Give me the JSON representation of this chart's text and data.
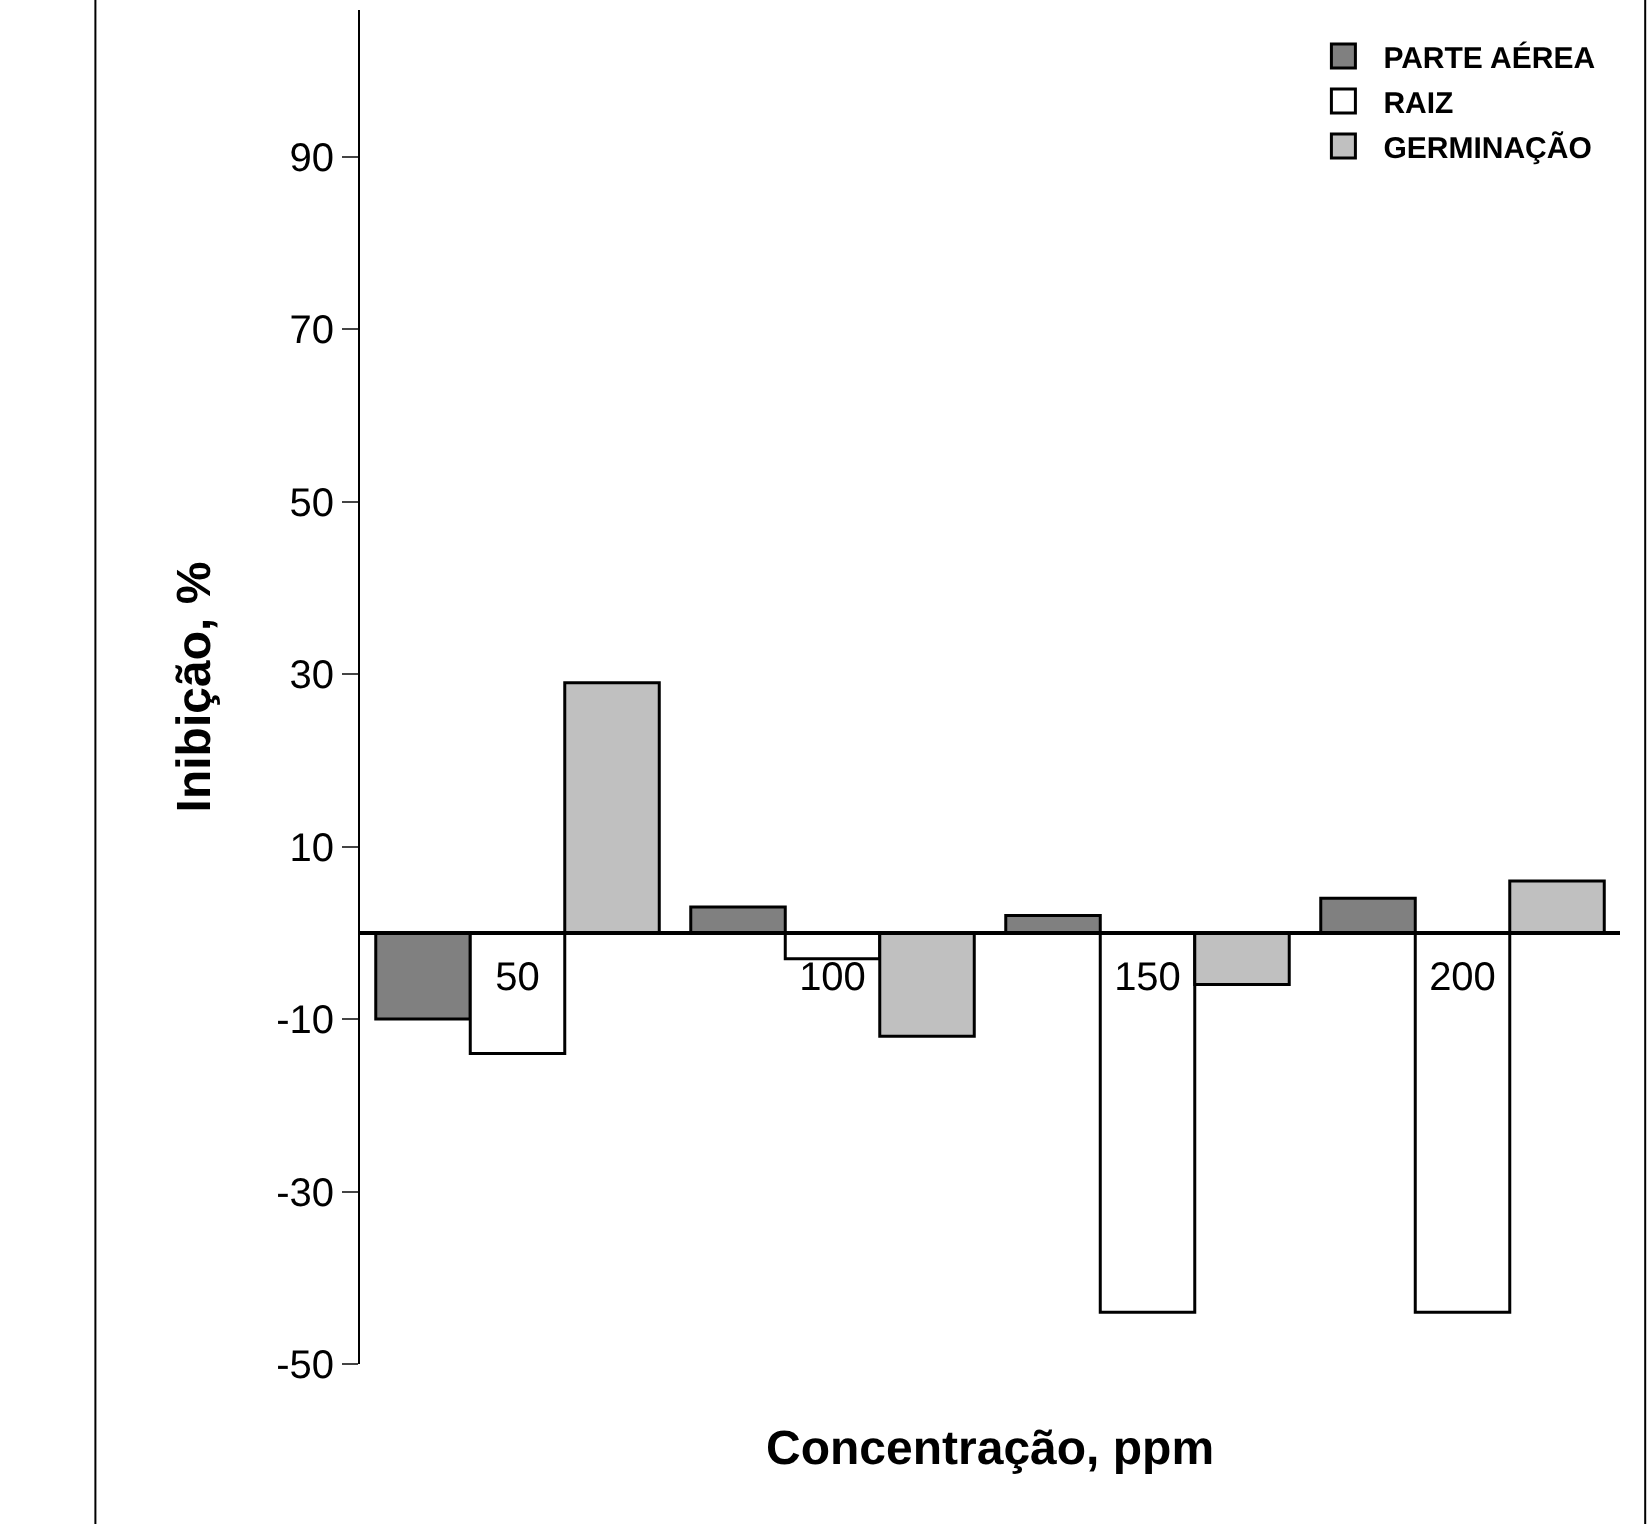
{
  "chart_data": {
    "type": "bar",
    "xlabel": "Concentração, ppm",
    "ylabel": "Inibição, %",
    "categories": [
      "50",
      "100",
      "150",
      "200"
    ],
    "series": [
      {
        "name": "PARTE AÉREA",
        "color": "#808080",
        "values": [
          -10,
          3,
          2,
          4
        ]
      },
      {
        "name": "RAIZ",
        "color": "#ffffff",
        "values": [
          -14,
          -3,
          -44,
          -44
        ]
      },
      {
        "name": "GERMINAÇÃO",
        "color": "#c0c0c0",
        "values": [
          29,
          -12,
          -6,
          6
        ]
      }
    ],
    "ylim": [
      -50,
      107
    ],
    "yticks": [
      -50,
      -30,
      -10,
      10,
      30,
      50,
      70,
      90
    ],
    "grid": false,
    "legend": "top right"
  }
}
